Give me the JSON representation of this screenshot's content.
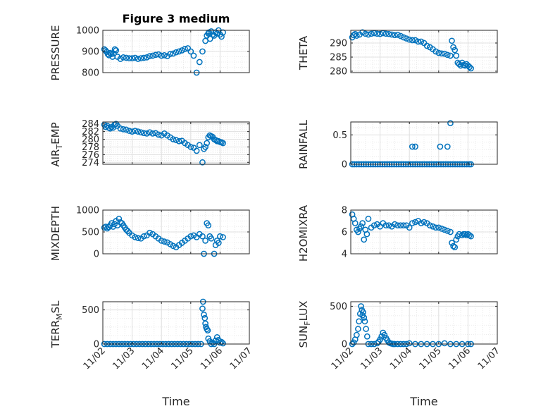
{
  "figure_title": "Figure 3 medium",
  "chart_data": [
    {
      "type": "scatter",
      "title": "Figure 3 medium",
      "ylabel": "PRESSURE",
      "xlabel": "",
      "xlim": [
        0,
        5
      ],
      "ylim": [
        800,
        1000
      ],
      "yticks": [
        800,
        900,
        1000
      ],
      "grid": true,
      "x": [
        0.05,
        0.09,
        0.13,
        0.17,
        0.21,
        0.25,
        0.29,
        0.33,
        0.37,
        0.41,
        0.45,
        0.5,
        0.6,
        0.7,
        0.8,
        0.9,
        1.0,
        1.1,
        1.2,
        1.3,
        1.4,
        1.5,
        1.6,
        1.7,
        1.8,
        1.9,
        2.0,
        2.1,
        2.2,
        2.3,
        2.4,
        2.5,
        2.6,
        2.7,
        2.8,
        2.9,
        3.0,
        3.1,
        3.2,
        3.3,
        3.4,
        3.5,
        3.55,
        3.6,
        3.62,
        3.66,
        3.7,
        3.75,
        3.8,
        3.85,
        3.9,
        3.95,
        4.0,
        4.05,
        4.1
      ],
      "y": [
        910,
        905,
        898,
        888,
        882,
        893,
        888,
        875,
        890,
        910,
        905,
        875,
        865,
        872,
        870,
        868,
        868,
        870,
        865,
        868,
        870,
        872,
        878,
        880,
        884,
        886,
        880,
        882,
        878,
        888,
        890,
        896,
        900,
        905,
        912,
        915,
        900,
        880,
        800,
        850,
        900,
        950,
        975,
        985,
        990,
        960,
        995,
        980,
        975,
        990,
        985,
        1000,
        980,
        970,
        990
      ]
    },
    {
      "type": "scatter",
      "ylabel": "THETA",
      "xlabel": "",
      "xlim": [
        0,
        5
      ],
      "ylim": [
        279.5,
        294.5
      ],
      "yticks": [
        280,
        285,
        290
      ],
      "grid": true,
      "x": [
        0.05,
        0.1,
        0.15,
        0.2,
        0.3,
        0.4,
        0.5,
        0.6,
        0.7,
        0.8,
        0.9,
        1.0,
        1.1,
        1.2,
        1.3,
        1.4,
        1.5,
        1.6,
        1.7,
        1.8,
        1.9,
        2.0,
        2.1,
        2.2,
        2.3,
        2.4,
        2.5,
        2.6,
        2.7,
        2.8,
        2.9,
        3.0,
        3.1,
        3.2,
        3.3,
        3.4,
        3.45,
        3.5,
        3.55,
        3.6,
        3.65,
        3.7,
        3.75,
        3.8,
        3.85,
        3.9,
        3.95,
        4.0,
        4.05,
        4.1
      ],
      "y": [
        292.0,
        292.8,
        293.2,
        292.6,
        293.0,
        293.8,
        293.3,
        293.0,
        293.3,
        293.5,
        293.3,
        293.2,
        293.5,
        293.3,
        293.2,
        293.0,
        292.8,
        292.9,
        292.5,
        292.0,
        291.6,
        291.2,
        291.0,
        291.0,
        290.5,
        290.5,
        290.0,
        289.0,
        288.5,
        287.8,
        287.0,
        286.5,
        286.3,
        286.2,
        285.8,
        285.5,
        290.8,
        288.5,
        287.5,
        285.5,
        283.0,
        282.5,
        282.0,
        283.0,
        282.2,
        282.0,
        282.5,
        282.0,
        281.5,
        281.0
      ]
    },
    {
      "type": "scatter",
      "ylabel": "AIR_TEMP",
      "xlabel": "",
      "xlim": [
        0,
        5
      ],
      "ylim": [
        273.5,
        284.5
      ],
      "yticks": [
        274,
        276,
        278,
        280,
        282,
        284
      ],
      "grid": true,
      "x": [
        0.05,
        0.1,
        0.15,
        0.2,
        0.25,
        0.3,
        0.35,
        0.4,
        0.45,
        0.5,
        0.6,
        0.7,
        0.8,
        0.9,
        1.0,
        1.1,
        1.2,
        1.3,
        1.4,
        1.5,
        1.6,
        1.7,
        1.8,
        1.9,
        2.0,
        2.1,
        2.2,
        2.3,
        2.4,
        2.5,
        2.6,
        2.7,
        2.8,
        2.9,
        3.0,
        3.1,
        3.2,
        3.3,
        3.4,
        3.45,
        3.5,
        3.55,
        3.6,
        3.65,
        3.7,
        3.75,
        3.8,
        3.85,
        3.9,
        3.95,
        4.0,
        4.05,
        4.1
      ],
      "y": [
        283.8,
        283.2,
        283.5,
        283.0,
        282.8,
        283.2,
        283.0,
        283.8,
        284.0,
        283.5,
        282.8,
        282.6,
        282.5,
        282.2,
        282.0,
        282.2,
        282.0,
        281.8,
        281.6,
        281.5,
        281.8,
        281.5,
        281.6,
        281.2,
        281.0,
        281.5,
        281.0,
        280.5,
        280.0,
        279.8,
        279.5,
        279.6,
        279.0,
        278.5,
        278.0,
        277.8,
        277.0,
        278.5,
        274.0,
        277.5,
        278.0,
        279.0,
        280.5,
        281.0,
        280.8,
        280.6,
        280.0,
        279.8,
        279.5,
        279.5,
        279.3,
        279.2,
        279.0
      ]
    },
    {
      "type": "scatter",
      "ylabel": "RAINFALL",
      "xlabel": "",
      "xlim": [
        0,
        5
      ],
      "ylim": [
        0,
        0.72
      ],
      "yticks": [
        0,
        0.5
      ],
      "grid": true,
      "x": [
        0.05,
        0.12,
        0.2,
        0.28,
        0.36,
        0.44,
        0.52,
        0.6,
        0.68,
        0.76,
        0.84,
        0.92,
        1.0,
        1.08,
        1.16,
        1.24,
        1.32,
        1.4,
        1.48,
        1.56,
        1.64,
        1.72,
        1.8,
        1.88,
        1.96,
        2.04,
        2.12,
        2.2,
        2.28,
        2.36,
        2.44,
        2.52,
        2.6,
        2.68,
        2.76,
        2.84,
        2.92,
        3.0,
        3.08,
        3.16,
        3.24,
        3.32,
        3.4,
        3.48,
        3.56,
        3.64,
        3.72,
        3.8,
        3.88,
        3.96,
        4.04,
        4.1,
        2.1,
        2.2,
        3.05,
        3.3,
        3.4
      ],
      "y": [
        0,
        0,
        0,
        0,
        0,
        0,
        0,
        0,
        0,
        0,
        0,
        0,
        0,
        0,
        0,
        0,
        0,
        0,
        0,
        0,
        0,
        0,
        0,
        0,
        0,
        0,
        0,
        0,
        0,
        0,
        0,
        0,
        0,
        0,
        0,
        0,
        0,
        0,
        0,
        0,
        0,
        0,
        0,
        0,
        0,
        0,
        0,
        0,
        0,
        0,
        0,
        0,
        0.3,
        0.3,
        0.3,
        0.3,
        0.7
      ]
    },
    {
      "type": "scatter",
      "ylabel": "MIXDEPTH",
      "xlabel": "",
      "xlim": [
        0,
        5
      ],
      "ylim": [
        0,
        1000
      ],
      "yticks": [
        0,
        500,
        1000
      ],
      "grid": true,
      "x": [
        0.05,
        0.1,
        0.15,
        0.2,
        0.25,
        0.3,
        0.35,
        0.4,
        0.45,
        0.5,
        0.55,
        0.6,
        0.65,
        0.7,
        0.75,
        0.8,
        0.85,
        0.9,
        1.0,
        1.1,
        1.2,
        1.3,
        1.4,
        1.5,
        1.6,
        1.7,
        1.8,
        1.9,
        2.0,
        2.1,
        2.2,
        2.3,
        2.4,
        2.5,
        2.6,
        2.7,
        2.8,
        2.9,
        3.0,
        3.1,
        3.2,
        3.3,
        3.4,
        3.45,
        3.5,
        3.55,
        3.6,
        3.65,
        3.7,
        3.8,
        3.85,
        3.9,
        3.95,
        4.0,
        4.1
      ],
      "y": [
        600,
        620,
        580,
        610,
        650,
        700,
        620,
        680,
        750,
        650,
        800,
        720,
        700,
        650,
        600,
        550,
        520,
        480,
        420,
        380,
        360,
        350,
        400,
        420,
        480,
        450,
        400,
        350,
        300,
        280,
        260,
        220,
        180,
        150,
        200,
        250,
        300,
        350,
        400,
        420,
        380,
        450,
        400,
        0,
        300,
        700,
        650,
        400,
        350,
        0,
        200,
        300,
        250,
        400,
        380
      ]
    },
    {
      "type": "scatter",
      "ylabel": "H2OMIXRA",
      "xlabel": "",
      "xlim": [
        0,
        5
      ],
      "ylim": [
        4,
        8
      ],
      "yticks": [
        4,
        6,
        8
      ],
      "grid": true,
      "x": [
        0.05,
        0.1,
        0.15,
        0.2,
        0.25,
        0.3,
        0.35,
        0.4,
        0.45,
        0.5,
        0.55,
        0.6,
        0.7,
        0.8,
        0.9,
        1.0,
        1.1,
        1.2,
        1.3,
        1.4,
        1.5,
        1.6,
        1.7,
        1.8,
        1.9,
        2.0,
        2.1,
        2.2,
        2.3,
        2.4,
        2.5,
        2.6,
        2.7,
        2.8,
        2.9,
        3.0,
        3.1,
        3.2,
        3.3,
        3.4,
        3.45,
        3.5,
        3.55,
        3.6,
        3.65,
        3.7,
        3.8,
        3.85,
        3.9,
        3.95,
        4.0,
        4.05,
        4.1
      ],
      "y": [
        7.6,
        7.2,
        6.8,
        6.2,
        6.0,
        6.3,
        6.5,
        6.8,
        5.3,
        6.2,
        5.8,
        7.2,
        6.4,
        6.6,
        6.7,
        6.5,
        6.8,
        6.6,
        6.6,
        6.5,
        6.7,
        6.6,
        6.6,
        6.6,
        6.6,
        6.4,
        6.8,
        6.9,
        7.0,
        6.8,
        6.9,
        6.8,
        6.6,
        6.5,
        6.4,
        6.4,
        6.3,
        6.2,
        6.1,
        6.0,
        5.0,
        4.7,
        4.6,
        5.3,
        5.6,
        5.8,
        5.7,
        5.8,
        5.8,
        5.7,
        5.8,
        5.7,
        5.6
      ]
    },
    {
      "type": "scatter",
      "ylabel": "TERR_MSL",
      "xlabel": "Time",
      "xlim": [
        0,
        5
      ],
      "ylim": [
        0,
        620
      ],
      "yticks": [
        0,
        500
      ],
      "xticks": [
        0,
        1,
        2,
        3,
        4,
        5
      ],
      "xticklabels": [
        "11/02",
        "11/03",
        "11/04",
        "11/05",
        "11/06",
        "11/07"
      ],
      "grid": true,
      "x": [
        0.05,
        0.15,
        0.25,
        0.35,
        0.45,
        0.55,
        0.65,
        0.75,
        0.85,
        0.95,
        1.05,
        1.15,
        1.25,
        1.35,
        1.45,
        1.55,
        1.65,
        1.75,
        1.85,
        1.95,
        2.05,
        2.15,
        2.25,
        2.35,
        2.45,
        2.55,
        2.65,
        2.75,
        2.85,
        2.95,
        3.05,
        3.15,
        3.25,
        3.35,
        3.4,
        3.42,
        3.45,
        3.48,
        3.5,
        3.52,
        3.55,
        3.58,
        3.6,
        3.65,
        3.7,
        3.75,
        3.8,
        3.85,
        3.9,
        3.95,
        4.0,
        4.05,
        4.1
      ],
      "y": [
        0,
        0,
        0,
        0,
        0,
        0,
        0,
        0,
        0,
        0,
        0,
        0,
        0,
        0,
        0,
        0,
        0,
        0,
        0,
        0,
        0,
        0,
        0,
        0,
        0,
        0,
        0,
        0,
        0,
        0,
        0,
        0,
        0,
        0,
        520,
        620,
        430,
        380,
        300,
        250,
        220,
        200,
        80,
        40,
        0,
        20,
        0,
        50,
        100,
        60,
        20,
        30,
        10
      ]
    },
    {
      "type": "scatter",
      "ylabel": "SUN_FLUX",
      "xlabel": "Time",
      "xlim": [
        0,
        5
      ],
      "ylim": [
        0,
        560
      ],
      "yticks": [
        0,
        500
      ],
      "xticks": [
        0,
        1,
        2,
        3,
        4,
        5
      ],
      "xticklabels": [
        "11/02",
        "11/03",
        "11/04",
        "11/05",
        "11/06",
        "11/07"
      ],
      "grid": true,
      "x": [
        0.05,
        0.1,
        0.15,
        0.2,
        0.25,
        0.28,
        0.32,
        0.35,
        0.38,
        0.4,
        0.42,
        0.45,
        0.48,
        0.52,
        0.56,
        0.6,
        0.7,
        0.8,
        0.9,
        0.95,
        1.0,
        1.05,
        1.1,
        1.15,
        1.2,
        1.25,
        1.3,
        1.35,
        1.4,
        1.45,
        1.5,
        1.6,
        1.7,
        1.8,
        1.9,
        2.0,
        2.2,
        2.4,
        2.6,
        2.8,
        3.0,
        3.2,
        3.4,
        3.6,
        3.8,
        4.0,
        4.1
      ],
      "y": [
        0,
        20,
        60,
        120,
        200,
        300,
        400,
        500,
        450,
        380,
        420,
        350,
        300,
        200,
        100,
        0,
        0,
        0,
        10,
        30,
        60,
        100,
        150,
        120,
        80,
        50,
        20,
        10,
        5,
        0,
        0,
        0,
        0,
        0,
        0,
        10,
        0,
        0,
        0,
        0,
        0,
        10,
        0,
        0,
        0,
        0,
        0
      ]
    }
  ]
}
